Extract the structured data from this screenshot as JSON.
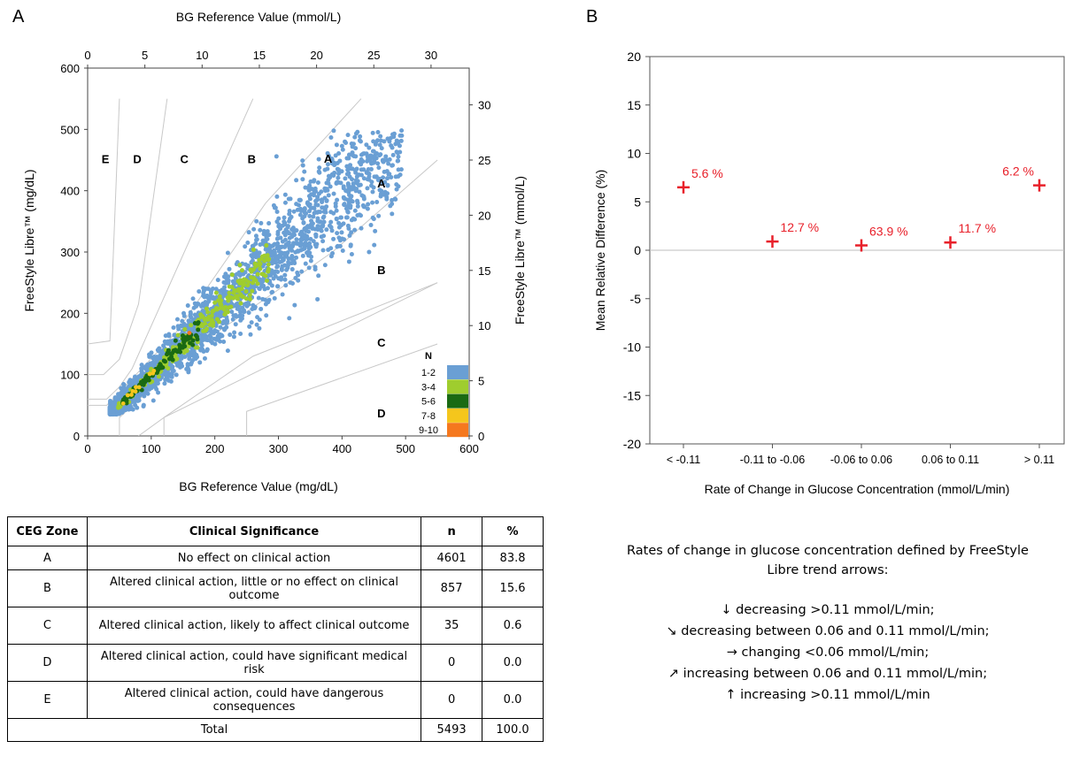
{
  "panel_a_label": "A",
  "panel_b_label": "B",
  "chart_data": [
    {
      "type": "scatter",
      "xlabel": "BG Reference Value (mg/dL)",
      "ylabel": "FreeStyle Libre™ (mg/dL)",
      "x2label": "BG Reference Value (mmol/L)",
      "y2label": "FreeStyle Libre™ (mmol/L)",
      "xlim": [
        0,
        600
      ],
      "ylim": [
        0,
        600
      ],
      "x_ticks": [
        0,
        100,
        200,
        300,
        400,
        500,
        600
      ],
      "y_ticks": [
        0,
        100,
        200,
        300,
        400,
        500,
        600
      ],
      "x2_ticks": [
        0,
        5,
        10,
        15,
        20,
        25,
        30
      ],
      "y2_ticks": [
        0,
        5,
        10,
        15,
        20,
        25,
        30
      ],
      "zone_labels": [
        {
          "text": "E",
          "x": 28,
          "y": 445
        },
        {
          "text": "D",
          "x": 78,
          "y": 445
        },
        {
          "text": "C",
          "x": 152,
          "y": 445
        },
        {
          "text": "B",
          "x": 258,
          "y": 445
        },
        {
          "text": "A",
          "x": 378,
          "y": 446
        },
        {
          "text": "A",
          "x": 462,
          "y": 405
        },
        {
          "text": "B",
          "x": 462,
          "y": 264
        },
        {
          "text": "C",
          "x": 462,
          "y": 146
        },
        {
          "text": "D",
          "x": 462,
          "y": 30
        }
      ],
      "legend": {
        "title": "N",
        "placement": "bottom-right",
        "entries": [
          {
            "label": "1-2",
            "color": "#6a9fd4"
          },
          {
            "label": "3-4",
            "color": "#9fcd2e"
          },
          {
            "label": "5-6",
            "color": "#1a6a13"
          },
          {
            "label": "7-8",
            "color": "#f5c61c"
          },
          {
            "label": "9-10",
            "color": "#f5781e"
          }
        ]
      },
      "grid": false
    },
    {
      "type": "scatter",
      "xlabel": "Rate of Change in Glucose Concentration (mmol/L/min)",
      "ylabel": "Mean Relative Difference (%)",
      "categories": [
        "< -0.11",
        "-0.11 to -0.06",
        "-0.06 to 0.06",
        "0.06 to 0.11",
        "> 0.11"
      ],
      "values": [
        6.5,
        0.9,
        0.5,
        0.8,
        6.7
      ],
      "data_labels": [
        "5.6 %",
        "12.7 %",
        "63.9 %",
        "11.7 %",
        "6.2 %"
      ],
      "ylim": [
        -20,
        20
      ],
      "y_ticks": [
        20,
        15,
        10,
        5,
        0,
        -5,
        -10,
        -15,
        -20
      ],
      "marker_color": "#e8202a",
      "grid": false
    }
  ],
  "table": {
    "headers": [
      "CEG Zone",
      "Clinical Significance",
      "n",
      "%"
    ],
    "rows": [
      {
        "zone": "A",
        "significance": "No effect on clinical action",
        "n": "4601",
        "pct": "83.8"
      },
      {
        "zone": "B",
        "significance": "Altered clinical action, little or no effect on clinical outcome",
        "n": "857",
        "pct": "15.6"
      },
      {
        "zone": "C",
        "significance": "Altered clinical action, likely to affect clinical outcome",
        "n": "35",
        "pct": "0.6"
      },
      {
        "zone": "D",
        "significance": "Altered clinical action, could have significant medical risk",
        "n": "0",
        "pct": "0.0"
      },
      {
        "zone": "E",
        "significance": "Altered clinical action, could have dangerous consequences",
        "n": "0",
        "pct": "0.0"
      }
    ],
    "total": {
      "label": "Total",
      "n": "5493",
      "pct": "100.0"
    }
  },
  "notes": {
    "title": "Rates of change in glucose concentration defined by FreeStyle Libre trend arrows:",
    "lines": [
      "↓ decreasing >0.11 mmol/L/min;",
      "↘ decreasing between 0.06 and 0.11 mmol/L/min;",
      "→ changing <0.06 mmol/L/min;",
      "↗ increasing between 0.06 and 0.11 mmol/L/min;",
      "↑ increasing >0.11 mmol/L/min"
    ]
  }
}
